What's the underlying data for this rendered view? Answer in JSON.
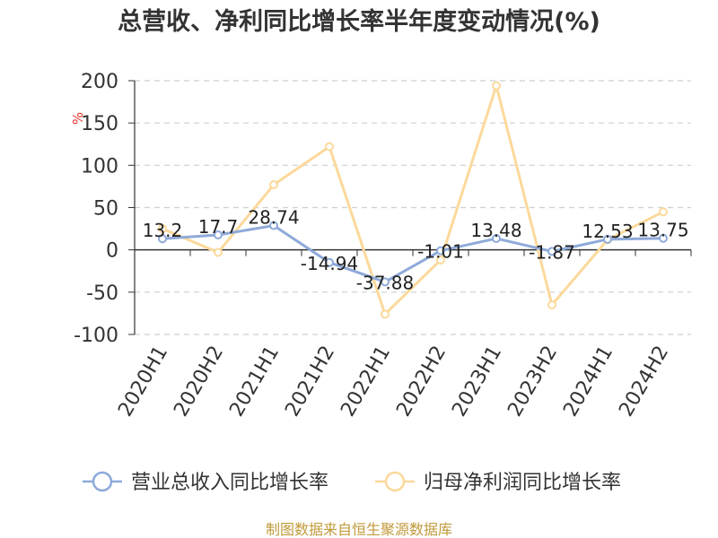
{
  "chart_data": {
    "type": "line",
    "title": "总营收、净利同比增长率半年度变动情况(%)",
    "ylabel": "%",
    "xlabel": "",
    "categories": [
      "2020H1",
      "2020H2",
      "2021H1",
      "2021H2",
      "2022H1",
      "2022H2",
      "2023H1",
      "2023H2",
      "2024H1",
      "2024H2"
    ],
    "ylim": [
      -100,
      200
    ],
    "yticks": [
      -100,
      -50,
      0,
      50,
      100,
      150,
      200
    ],
    "grid": true,
    "legend_position": "bottom",
    "series": [
      {
        "name": "营业总收入同比增长率",
        "color": "#8eaad9",
        "values": [
          13.2,
          17.7,
          28.74,
          -14.94,
          -37.88,
          -1.01,
          13.48,
          -1.87,
          12.53,
          13.75
        ],
        "labels": [
          "13.2",
          "17.7",
          "28.74",
          "-14.94",
          "-37.88",
          "-1.01",
          "13.48",
          "-1.87",
          "12.53",
          "13.75"
        ]
      },
      {
        "name": "归母净利润同比增长率",
        "color": "#fbd99b",
        "values": [
          25,
          -3,
          77,
          122,
          -76,
          -12,
          194,
          -65,
          12,
          45
        ]
      }
    ],
    "source": "制图数据来自恒生聚源数据库"
  }
}
